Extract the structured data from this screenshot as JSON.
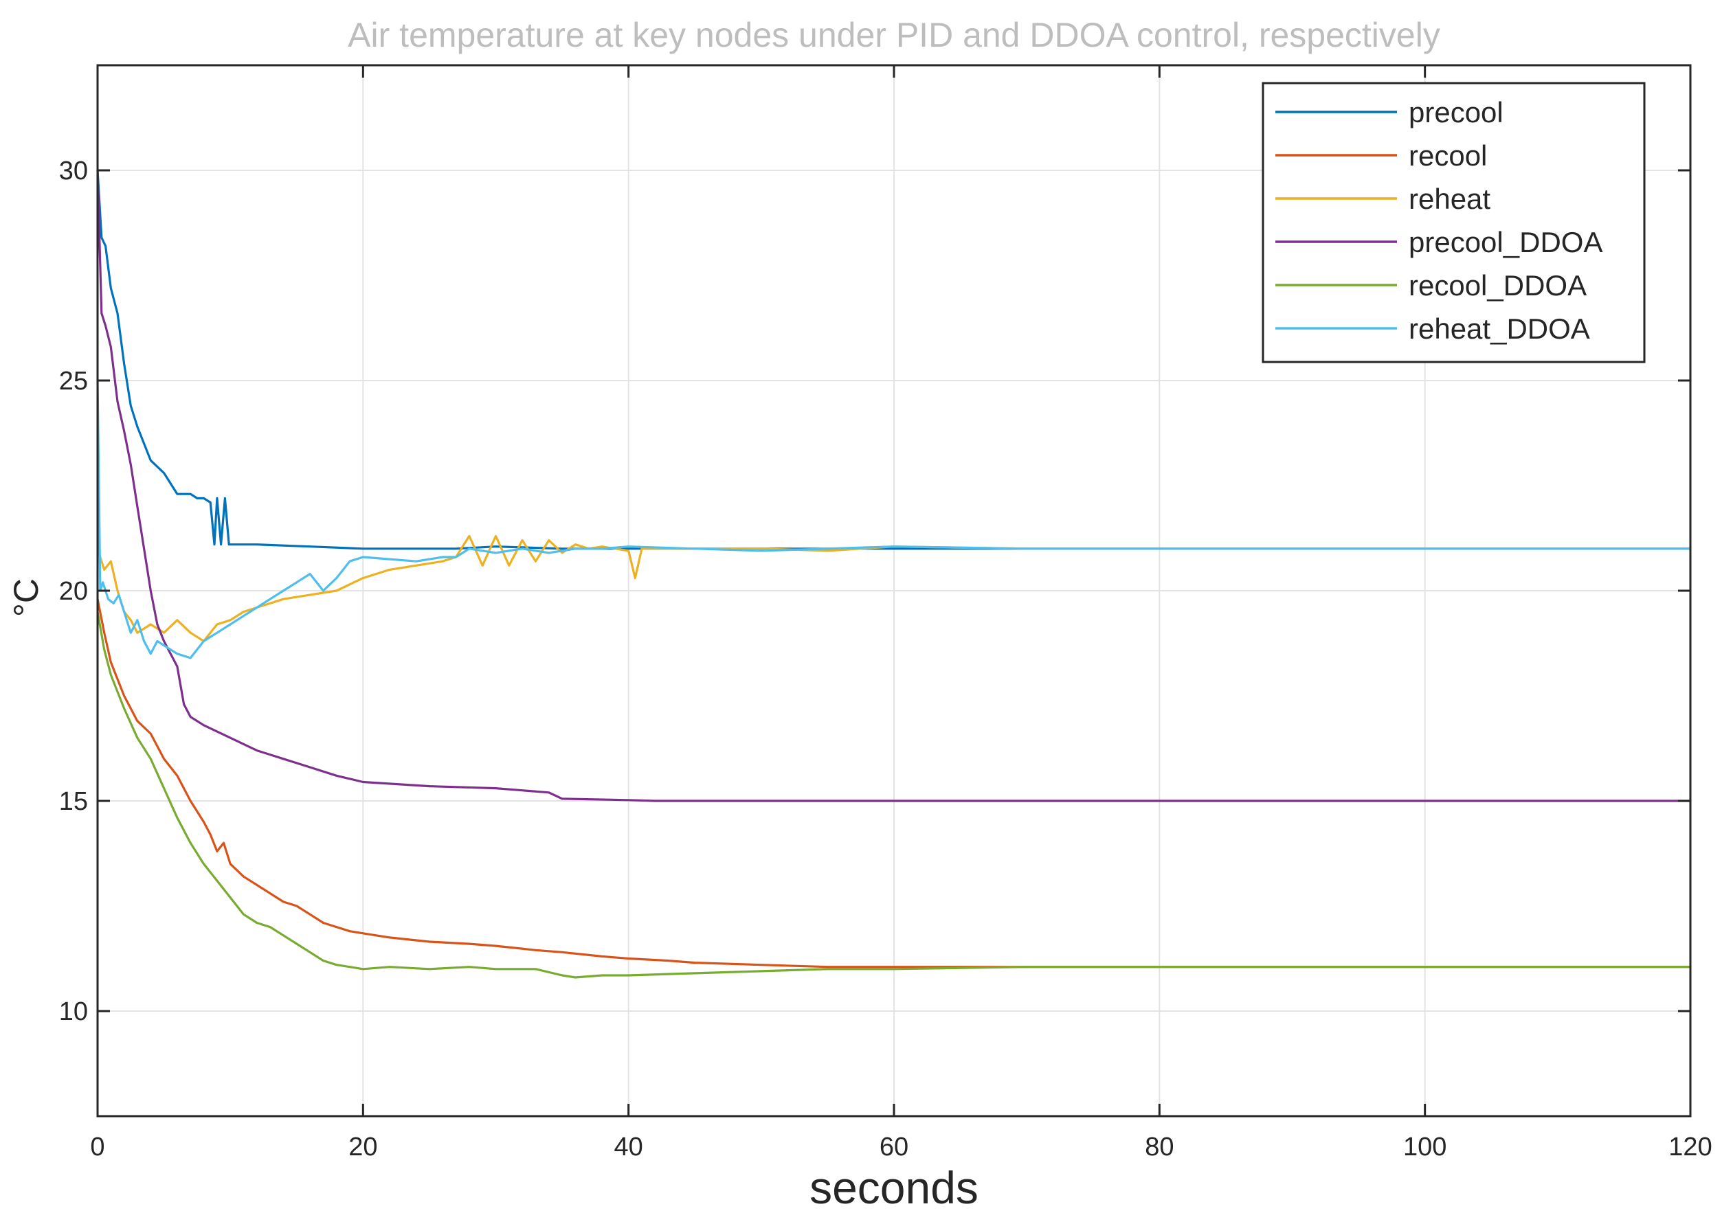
{
  "chart_data": {
    "type": "line",
    "title": "Air temperature at key nodes under PID and DDOA control, respectively",
    "xlabel": "seconds",
    "ylabel": "°C",
    "xlim": [
      0,
      120
    ],
    "ylim": [
      7.5,
      32.5
    ],
    "xticks": [
      0,
      20,
      40,
      60,
      80,
      100,
      120
    ],
    "yticks": [
      10,
      15,
      20,
      25,
      30
    ],
    "xtick_labels": [
      "0",
      "20",
      "40",
      "60",
      "80",
      "100",
      "120"
    ],
    "ytick_labels": [
      "10",
      "15",
      "20",
      "25",
      "30"
    ],
    "grid": true,
    "legend_position": "top-right",
    "series": [
      {
        "name": "precool",
        "color": "#0072bd",
        "x": [
          0,
          0.3,
          0.6,
          1,
          1.5,
          2,
          2.5,
          3,
          3.5,
          4,
          5,
          6,
          7,
          7.5,
          8,
          8.5,
          8.8,
          9,
          9.3,
          9.6,
          9.9,
          10.2,
          12,
          16,
          20,
          25,
          27,
          30,
          35,
          40,
          50,
          60,
          70,
          80,
          90,
          100,
          110,
          120
        ],
        "y": [
          30.0,
          28.4,
          28.2,
          27.2,
          26.6,
          25.4,
          24.4,
          23.9,
          23.5,
          23.1,
          22.8,
          22.3,
          22.3,
          22.2,
          22.2,
          22.1,
          21.1,
          22.2,
          21.1,
          22.2,
          21.1,
          21.1,
          21.1,
          21.05,
          21.0,
          21.0,
          21.0,
          21.05,
          21.0,
          21.0,
          21.0,
          21.0,
          21.0,
          21.0,
          21.0,
          21.0,
          21.0,
          21.0
        ]
      },
      {
        "name": "recool",
        "color": "#d95319",
        "x": [
          0,
          0.5,
          1,
          2,
          3,
          4,
          5,
          6,
          7,
          8,
          8.5,
          9,
          9.5,
          10,
          11,
          12,
          13,
          14,
          15,
          16,
          17,
          18,
          19,
          20,
          22,
          25,
          28,
          30,
          33,
          35,
          38,
          40,
          43,
          45,
          50,
          55,
          60,
          70,
          80,
          90,
          100,
          110,
          120
        ],
        "y": [
          19.8,
          19.0,
          18.3,
          17.5,
          16.9,
          16.6,
          16.0,
          15.6,
          15.0,
          14.5,
          14.2,
          13.8,
          14.0,
          13.5,
          13.2,
          13.0,
          12.8,
          12.6,
          12.5,
          12.3,
          12.1,
          12.0,
          11.9,
          11.85,
          11.75,
          11.65,
          11.6,
          11.55,
          11.45,
          11.4,
          11.3,
          11.25,
          11.2,
          11.15,
          11.1,
          11.05,
          11.05,
          11.05,
          11.05,
          11.05,
          11.05,
          11.05,
          11.05
        ]
      },
      {
        "name": "reheat",
        "color": "#edb120",
        "x": [
          0,
          0.5,
          1,
          1.5,
          2,
          2.5,
          3,
          3.5,
          4,
          5,
          6,
          7,
          8,
          9,
          10,
          11,
          12,
          14,
          16,
          18,
          20,
          22,
          24,
          26,
          27,
          28,
          29,
          30,
          31,
          32,
          33,
          34,
          35,
          36,
          37,
          38,
          39,
          40,
          40.5,
          41,
          45,
          50,
          55,
          60,
          70,
          80,
          90,
          100,
          110,
          120
        ],
        "y": [
          21.0,
          20.5,
          20.7,
          20.0,
          19.5,
          19.3,
          19.0,
          19.1,
          19.2,
          19.0,
          19.3,
          19.0,
          18.8,
          19.2,
          19.3,
          19.5,
          19.6,
          19.8,
          19.9,
          20.0,
          20.3,
          20.5,
          20.6,
          20.7,
          20.8,
          21.3,
          20.6,
          21.3,
          20.6,
          21.2,
          20.7,
          21.2,
          20.9,
          21.1,
          21.0,
          21.05,
          21.0,
          20.95,
          20.3,
          21.0,
          21.0,
          21.0,
          20.95,
          21.05,
          21.0,
          21.0,
          21.0,
          21.0,
          21.0,
          21.0
        ]
      },
      {
        "name": "precool_DDOA",
        "color": "#7e2f8e",
        "x": [
          0,
          0.3,
          0.6,
          1,
          1.5,
          2,
          2.5,
          3,
          3.5,
          4,
          4.5,
          5,
          5.5,
          6,
          6.5,
          7,
          8,
          10,
          12,
          14,
          16,
          18,
          20,
          25,
          30,
          34,
          35,
          40,
          42,
          50,
          60,
          70,
          80,
          90,
          100,
          110,
          120
        ],
        "y": [
          30.0,
          26.6,
          26.3,
          25.8,
          24.5,
          23.8,
          23.0,
          22.0,
          21.0,
          20.0,
          19.2,
          18.8,
          18.5,
          18.2,
          17.3,
          17.0,
          16.8,
          16.5,
          16.2,
          16.0,
          15.8,
          15.6,
          15.45,
          15.35,
          15.3,
          15.2,
          15.05,
          15.02,
          15.0,
          15.0,
          15.0,
          15.0,
          15.0,
          15.0,
          15.0,
          15.0,
          15.0
        ]
      },
      {
        "name": "recool_DDOA",
        "color": "#77ac30",
        "x": [
          0,
          0.5,
          1,
          2,
          3,
          4,
          5,
          6,
          7,
          8,
          9,
          10,
          11,
          12,
          13,
          14,
          15,
          16,
          17,
          18,
          19,
          20,
          22,
          25,
          28,
          30,
          33,
          35,
          36,
          38,
          40,
          43,
          45,
          50,
          55,
          60,
          70,
          80,
          90,
          100,
          110,
          120
        ],
        "y": [
          19.5,
          18.6,
          18.0,
          17.2,
          16.5,
          16.0,
          15.3,
          14.6,
          14.0,
          13.5,
          13.1,
          12.7,
          12.3,
          12.1,
          12.0,
          11.8,
          11.6,
          11.4,
          11.2,
          11.1,
          11.05,
          11.0,
          11.05,
          11.0,
          11.05,
          11.0,
          11.0,
          10.85,
          10.8,
          10.85,
          10.85,
          10.88,
          10.9,
          10.95,
          11.0,
          11.0,
          11.05,
          11.05,
          11.05,
          11.05,
          11.05,
          11.05
        ]
      },
      {
        "name": "reheat_DDOA",
        "color": "#4dbeee",
        "x": [
          0,
          0.2,
          0.4,
          0.8,
          1.2,
          1.6,
          2,
          2.5,
          3,
          3.5,
          4,
          4.5,
          5,
          5.5,
          6,
          7,
          8,
          9,
          10,
          11,
          12,
          13,
          14,
          15,
          16,
          17,
          18,
          19,
          20,
          22,
          24,
          26,
          27,
          28,
          30,
          32,
          34,
          36,
          38,
          40,
          45,
          50,
          55,
          60,
          70,
          80,
          90,
          100,
          110,
          120
        ],
        "y": [
          25.0,
          20.0,
          20.2,
          19.8,
          19.7,
          19.9,
          19.5,
          19.0,
          19.3,
          18.8,
          18.5,
          18.8,
          18.7,
          18.6,
          18.5,
          18.4,
          18.8,
          19.0,
          19.2,
          19.4,
          19.6,
          19.8,
          20.0,
          20.2,
          20.4,
          20.0,
          20.3,
          20.7,
          20.8,
          20.75,
          20.7,
          20.8,
          20.8,
          21.0,
          20.9,
          21.0,
          20.9,
          21.0,
          21.0,
          21.05,
          21.0,
          20.95,
          21.0,
          21.05,
          21.0,
          21.0,
          21.0,
          21.0,
          21.0,
          21.0
        ]
      }
    ]
  }
}
